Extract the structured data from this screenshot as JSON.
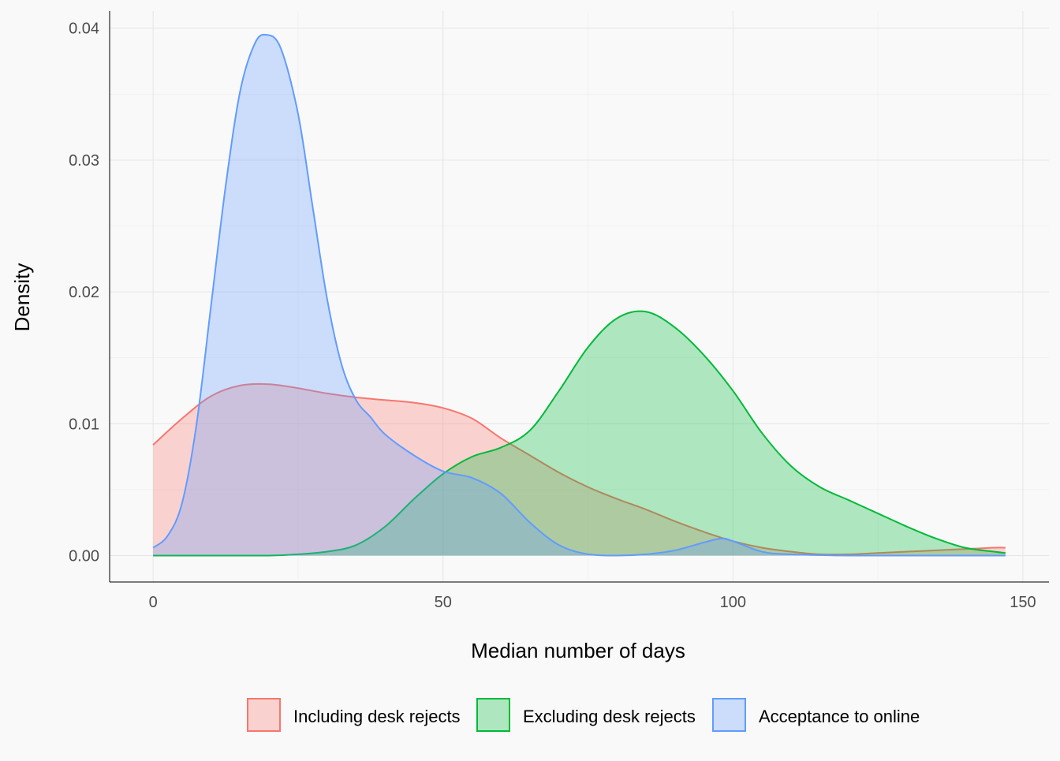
{
  "chart_data": {
    "type": "area",
    "xlabel": "Median number of days",
    "ylabel": "Density",
    "xlim": [
      -7.5,
      154.5
    ],
    "ylim": [
      -0.002,
      0.0413
    ],
    "x_ticks": [
      0,
      50,
      100,
      150
    ],
    "x_tick_labels": [
      "0",
      "50",
      "100",
      "150"
    ],
    "y_ticks": [
      0,
      0.01,
      0.02,
      0.03,
      0.04
    ],
    "y_tick_labels": [
      "0.00",
      "0.01",
      "0.02",
      "0.03",
      "0.04"
    ],
    "grid": true,
    "legend_position": "bottom",
    "series": [
      {
        "name": "Including desk rejects",
        "stroke": "#F8766D",
        "fill": "#F8766D",
        "x": [
          0,
          5,
          10,
          15,
          20,
          25,
          30,
          35,
          40,
          45,
          50,
          55,
          60,
          65,
          70,
          75,
          80,
          85,
          90,
          95,
          100,
          105,
          110,
          115,
          120,
          125,
          130,
          135,
          140,
          145,
          147
        ],
        "y": [
          0.0084,
          0.0104,
          0.0121,
          0.0129,
          0.013,
          0.0127,
          0.0123,
          0.012,
          0.0118,
          0.0116,
          0.0112,
          0.0104,
          0.0089,
          0.0076,
          0.0063,
          0.0052,
          0.0043,
          0.0035,
          0.0026,
          0.0018,
          0.0011,
          0.0006,
          0.0003,
          0.0001,
          0.0001,
          0.0002,
          0.0003,
          0.0004,
          0.0005,
          0.0006,
          0.0006
        ]
      },
      {
        "name": "Excluding desk rejects",
        "stroke": "#00BA38",
        "fill": "#00BA38",
        "x": [
          0,
          5,
          10,
          15,
          20,
          25,
          30,
          35,
          40,
          45,
          50,
          55,
          60,
          65,
          70,
          75,
          80,
          85,
          90,
          95,
          100,
          105,
          110,
          115,
          120,
          125,
          130,
          135,
          140,
          145,
          147
        ],
        "y": [
          0,
          0,
          0,
          0,
          0,
          0.0001,
          0.0003,
          0.0008,
          0.0022,
          0.0043,
          0.0062,
          0.0075,
          0.0082,
          0.0095,
          0.0125,
          0.0158,
          0.018,
          0.0185,
          0.0173,
          0.0152,
          0.0125,
          0.0093,
          0.0068,
          0.0052,
          0.0042,
          0.0032,
          0.0022,
          0.0013,
          0.0006,
          0.0003,
          0.0002
        ]
      },
      {
        "name": "Acceptance to online",
        "stroke": "#619CFF",
        "fill": "#619CFF",
        "x": [
          0,
          2.5,
          5,
          7.5,
          10,
          12.5,
          15,
          17.5,
          19.5,
          22,
          25,
          27.5,
          30,
          32.5,
          35,
          37.5,
          40,
          45,
          50,
          55,
          60,
          65,
          70,
          75,
          80,
          85,
          90,
          95,
          98,
          100,
          105,
          110,
          120,
          130,
          140,
          147
        ],
        "y": [
          0.0006,
          0.0015,
          0.004,
          0.01,
          0.019,
          0.028,
          0.0352,
          0.0388,
          0.0395,
          0.0385,
          0.0335,
          0.0265,
          0.0195,
          0.0145,
          0.0118,
          0.0105,
          0.0092,
          0.0076,
          0.0064,
          0.0059,
          0.0047,
          0.0025,
          0.0008,
          0.0001,
          0,
          0.0001,
          0.0004,
          0.001,
          0.0013,
          0.0011,
          0.0003,
          0.0001,
          0,
          0,
          0,
          0
        ]
      }
    ]
  }
}
